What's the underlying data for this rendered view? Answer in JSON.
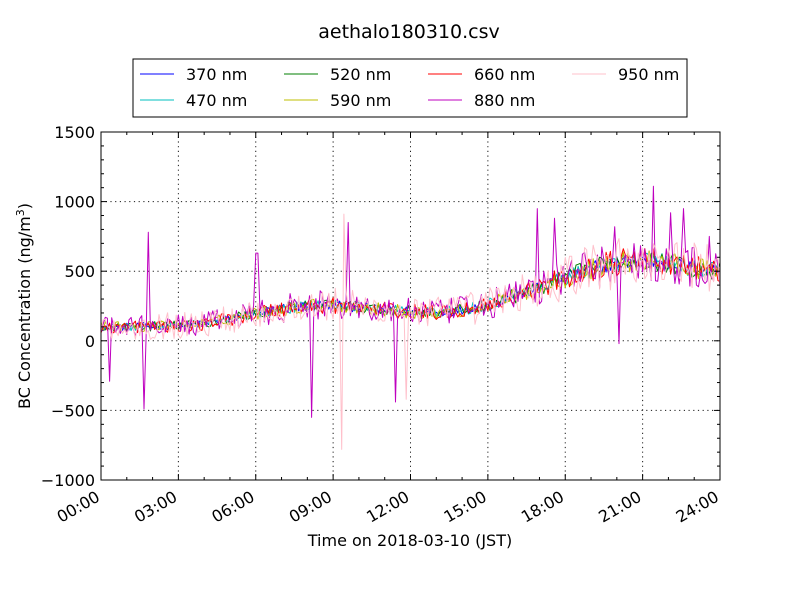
{
  "chart_data": {
    "type": "line",
    "title": "aethalo180310.csv",
    "xlabel": "Time on 2018-03-10 (JST)",
    "ylabel_main": "BC Concentration (ng/m",
    "ylabel_sup": "3",
    "ylabel_close": ")",
    "xlim_hours": [
      0,
      24
    ],
    "ylim": [
      -1000,
      1500
    ],
    "x_ticks": [
      {
        "h": 0,
        "label": "00:00"
      },
      {
        "h": 3,
        "label": "03:00"
      },
      {
        "h": 6,
        "label": "06:00"
      },
      {
        "h": 9,
        "label": "09:00"
      },
      {
        "h": 12,
        "label": "12:00"
      },
      {
        "h": 15,
        "label": "15:00"
      },
      {
        "h": 18,
        "label": "18:00"
      },
      {
        "h": 21,
        "label": "21:00"
      },
      {
        "h": 24,
        "label": "24:00"
      }
    ],
    "y_ticks": [
      {
        "v": 1500,
        "label": "1500"
      },
      {
        "v": 1000,
        "label": "1000"
      },
      {
        "v": 500,
        "label": "500"
      },
      {
        "v": 0,
        "label": "0"
      },
      {
        "v": -500,
        "label": "−500"
      },
      {
        "v": -1000,
        "label": "−1000"
      }
    ],
    "grid": true,
    "legend_position": "top-center",
    "trend": [
      [
        0,
        100
      ],
      [
        1,
        100
      ],
      [
        2,
        105
      ],
      [
        3,
        110
      ],
      [
        4,
        120
      ],
      [
        5,
        160
      ],
      [
        6,
        200
      ],
      [
        7,
        230
      ],
      [
        8,
        250
      ],
      [
        9,
        260
      ],
      [
        10,
        240
      ],
      [
        11,
        220
      ],
      [
        12,
        210
      ],
      [
        13,
        200
      ],
      [
        14,
        220
      ],
      [
        15,
        260
      ],
      [
        16,
        320
      ],
      [
        17,
        380
      ],
      [
        18,
        450
      ],
      [
        19,
        520
      ],
      [
        20,
        560
      ],
      [
        21,
        580
      ],
      [
        22,
        560
      ],
      [
        23,
        520
      ],
      [
        24,
        500
      ]
    ],
    "series": [
      {
        "name": "370 nm",
        "color": "#0000ff",
        "noise_level": 0.35
      },
      {
        "name": "470 nm",
        "color": "#00bfbf",
        "noise_level": 0.4
      },
      {
        "name": "520 nm",
        "color": "#007f00",
        "noise_level": 0.45
      },
      {
        "name": "590 nm",
        "color": "#bfbf00",
        "noise_level": 0.5
      },
      {
        "name": "660 nm",
        "color": "#ff0000",
        "noise_level": 0.6
      },
      {
        "name": "880 nm",
        "color": "#bf00bf",
        "noise_level": 1.0
      },
      {
        "name": "950 nm",
        "color": "#ffc0cb",
        "noise_level": 1.2
      }
    ],
    "spikes": [
      {
        "series": "880 nm",
        "h": 1.85,
        "v": 780
      },
      {
        "series": "880 nm",
        "h": 1.7,
        "v": -490
      },
      {
        "series": "880 nm",
        "h": 0.35,
        "v": -290
      },
      {
        "series": "880 nm",
        "h": 6.05,
        "v": 630
      },
      {
        "series": "880 nm",
        "h": 8.2,
        "v": -550
      },
      {
        "series": "880 nm",
        "h": 9.6,
        "v": 850
      },
      {
        "series": "880 nm",
        "h": 11.45,
        "v": -440
      },
      {
        "series": "950 nm",
        "h": 9.4,
        "v": 910
      },
      {
        "series": "950 nm",
        "h": 9.35,
        "v": -780
      },
      {
        "series": "950 nm",
        "h": 11.8,
        "v": -420
      },
      {
        "series": "880 nm",
        "h": 16.9,
        "v": 950
      },
      {
        "series": "880 nm",
        "h": 17.6,
        "v": 880
      },
      {
        "series": "880 nm",
        "h": 19.9,
        "v": 820
      },
      {
        "series": "880 nm",
        "h": 20.1,
        "v": -20
      },
      {
        "series": "880 nm",
        "h": 21.45,
        "v": 1110
      },
      {
        "series": "880 nm",
        "h": 22.1,
        "v": 920
      },
      {
        "series": "880 nm",
        "h": 22.55,
        "v": 950
      },
      {
        "series": "880 nm",
        "h": 23.55,
        "v": 750
      }
    ]
  }
}
